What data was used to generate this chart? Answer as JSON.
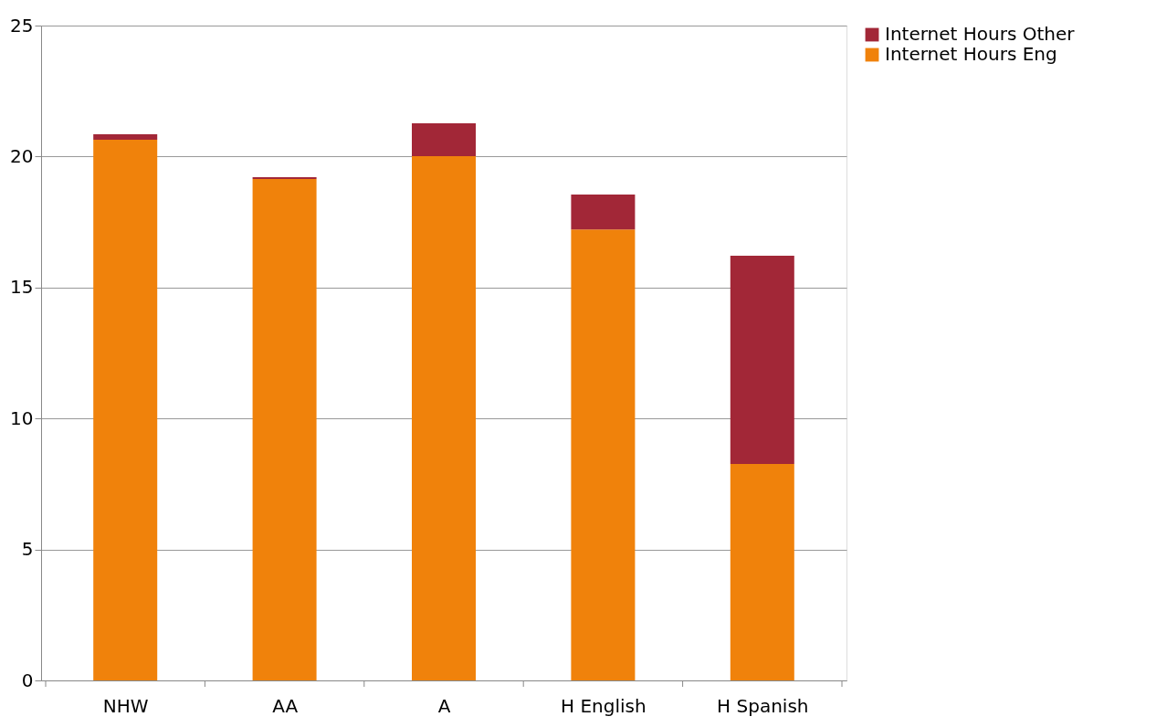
{
  "chart_data": {
    "type": "bar",
    "stacked": true,
    "categories": [
      "NHW",
      "AA",
      "A",
      "H English",
      "H Spanish"
    ],
    "series": [
      {
        "name": "Internet Hours Eng",
        "color": "#f0820b",
        "values": [
          20.64,
          19.14,
          20.01,
          17.22,
          8.26
        ]
      },
      {
        "name": "Internet Hours Other",
        "color": "#a22737",
        "values": [
          0.21,
          0.07,
          1.26,
          1.33,
          7.95
        ]
      }
    ],
    "ylim": [
      0,
      25
    ],
    "yticks": [
      0,
      5,
      10,
      15,
      20,
      25
    ],
    "grid": "y",
    "legend": "right"
  }
}
